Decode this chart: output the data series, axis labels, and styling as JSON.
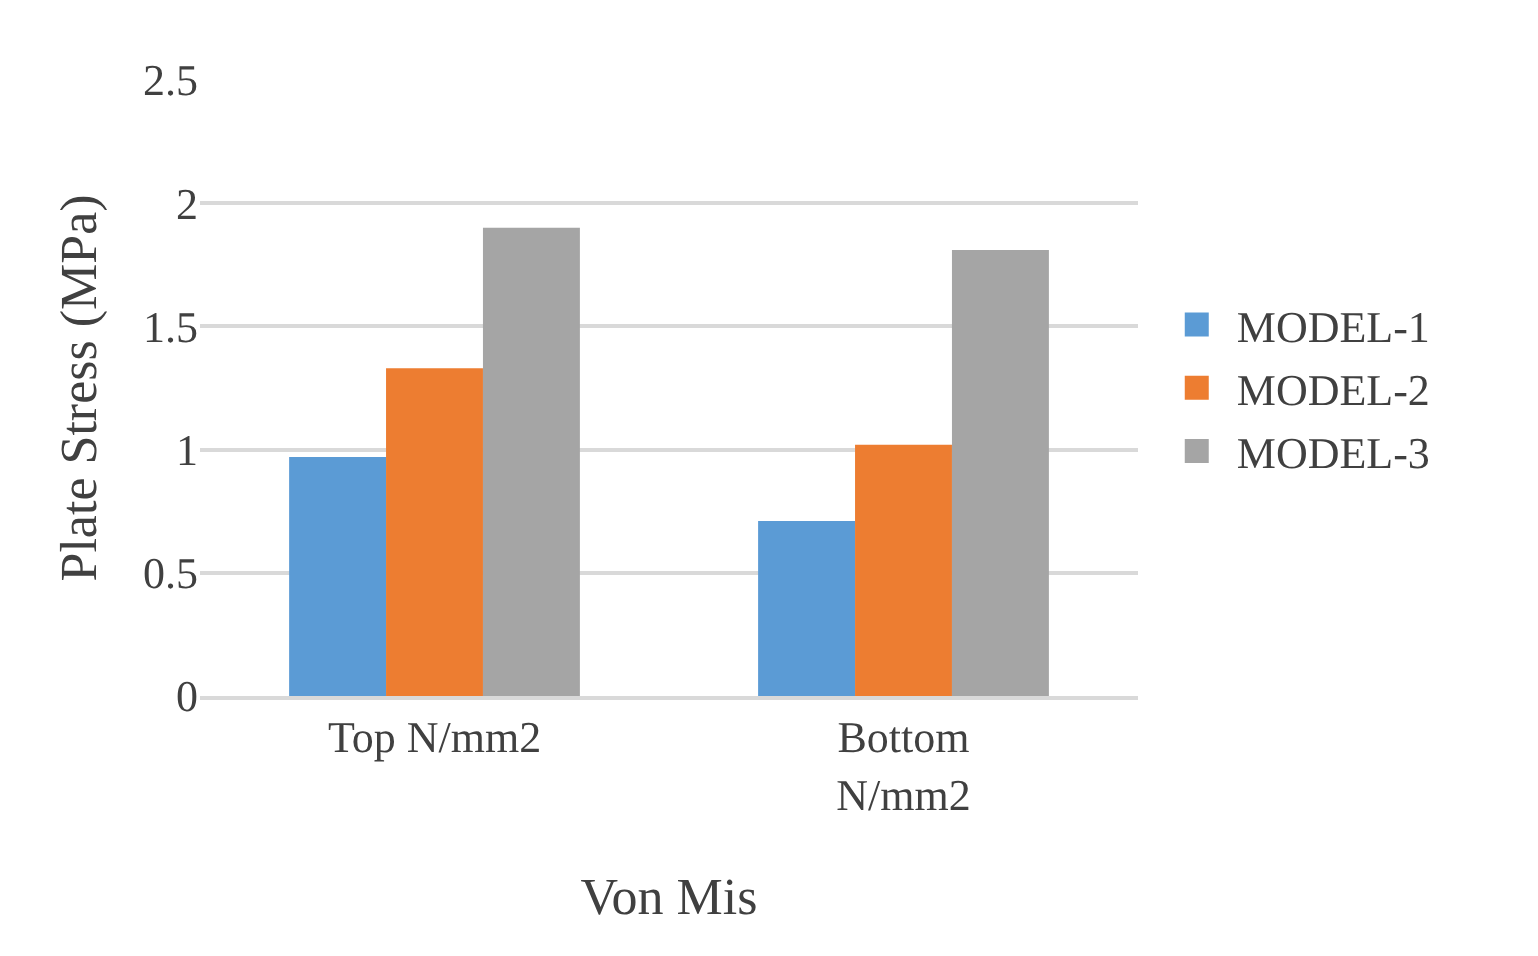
{
  "chart_data": {
    "type": "bar",
    "ylabel": "Plate Stress (MPa)",
    "xlabel": "Von Mis",
    "categories": [
      "Top N/mm2",
      "Bottom N/mm2"
    ],
    "series": [
      {
        "name": "MODEL-1",
        "color": "#5b9bd5",
        "values": [
          0.97,
          0.71
        ]
      },
      {
        "name": "MODEL-2",
        "color": "#ed7d31",
        "values": [
          1.33,
          1.02
        ]
      },
      {
        "name": "MODEL-3",
        "color": "#a5a5a5",
        "values": [
          1.9,
          1.81
        ]
      }
    ],
    "ylim": [
      0,
      2.5
    ],
    "yticks": [
      0,
      0.5,
      1,
      1.5,
      2,
      2.5
    ],
    "grid": "y",
    "legend": "right"
  }
}
